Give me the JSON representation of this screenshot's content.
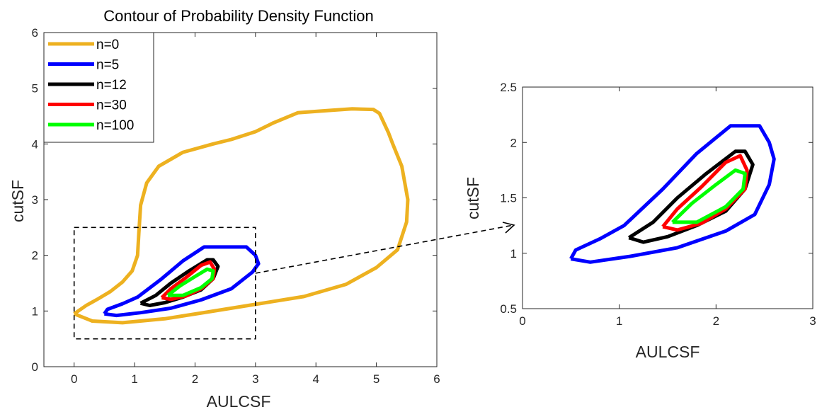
{
  "chart_data": [
    {
      "type": "line",
      "subtype": "contour",
      "title": "Contour of Probability Density Function",
      "xlabel": "AULCSF",
      "ylabel": "cutSF",
      "xlim": [
        -0.5,
        6
      ],
      "ylim": [
        0,
        6
      ],
      "xticks": [
        "0",
        "1",
        "2",
        "3",
        "4",
        "5",
        "6"
      ],
      "yticks": [
        "0",
        "1",
        "2",
        "3",
        "4",
        "5",
        "6"
      ],
      "legend": {
        "placement": "top-left"
      },
      "zoom_box": {
        "x": [
          0,
          3
        ],
        "y": [
          0.5,
          2.5
        ]
      },
      "series": [
        {
          "name": "n=0",
          "color": "#EDB120",
          "points": [
            [
              0,
              0.95
            ],
            [
              0.3,
              0.82
            ],
            [
              0.8,
              0.79
            ],
            [
              1.5,
              0.86
            ],
            [
              2.2,
              0.98
            ],
            [
              3,
              1.12
            ],
            [
              3.8,
              1.26
            ],
            [
              4.5,
              1.48
            ],
            [
              5,
              1.78
            ],
            [
              5.35,
              2.1
            ],
            [
              5.5,
              2.6
            ],
            [
              5.52,
              3.0
            ],
            [
              5.42,
              3.6
            ],
            [
              5.27,
              4.0
            ],
            [
              5.2,
              4.2
            ],
            [
              5.05,
              4.55
            ],
            [
              4.95,
              4.62
            ],
            [
              4.6,
              4.63
            ],
            [
              4.2,
              4.6
            ],
            [
              3.7,
              4.56
            ],
            [
              3.3,
              4.38
            ],
            [
              3,
              4.22
            ],
            [
              2.6,
              4.08
            ],
            [
              2.3,
              4.0
            ],
            [
              1.8,
              3.85
            ],
            [
              1.4,
              3.6
            ],
            [
              1.2,
              3.3
            ],
            [
              1.1,
              2.9
            ],
            [
              1.07,
              2.4
            ],
            [
              1.05,
              2.0
            ],
            [
              0.96,
              1.72
            ],
            [
              0.8,
              1.52
            ],
            [
              0.6,
              1.35
            ],
            [
              0.4,
              1.22
            ],
            [
              0.2,
              1.1
            ],
            [
              0,
              0.95
            ]
          ]
        },
        {
          "name": "n=5",
          "color": "#0000FF",
          "points": [
            [
              0.5,
              0.95
            ],
            [
              0.7,
              0.92
            ],
            [
              1.1,
              0.97
            ],
            [
              1.6,
              1.05
            ],
            [
              2.1,
              1.2
            ],
            [
              2.6,
              1.4
            ],
            [
              2.95,
              1.7
            ],
            [
              3.05,
              1.85
            ],
            [
              3.0,
              2.0
            ],
            [
              2.85,
              2.15
            ],
            [
              2.45,
              2.15
            ],
            [
              2.15,
              2.15
            ],
            [
              1.8,
              1.9
            ],
            [
              1.45,
              1.58
            ],
            [
              1.05,
              1.25
            ],
            [
              0.8,
              1.13
            ],
            [
              0.55,
              1.03
            ],
            [
              0.5,
              0.95
            ]
          ]
        },
        {
          "name": "n=12",
          "color": "#000000",
          "points": [
            [
              1.1,
              1.14
            ],
            [
              1.25,
              1.1
            ],
            [
              1.5,
              1.15
            ],
            [
              1.8,
              1.25
            ],
            [
              2.1,
              1.38
            ],
            [
              2.3,
              1.58
            ],
            [
              2.38,
              1.8
            ],
            [
              2.3,
              1.92
            ],
            [
              2.2,
              1.92
            ],
            [
              1.9,
              1.72
            ],
            [
              1.6,
              1.5
            ],
            [
              1.35,
              1.28
            ],
            [
              1.1,
              1.14
            ]
          ]
        },
        {
          "name": "n=30",
          "color": "#FF0000",
          "points": [
            [
              1.45,
              1.24
            ],
            [
              1.6,
              1.21
            ],
            [
              1.85,
              1.27
            ],
            [
              2.1,
              1.4
            ],
            [
              2.3,
              1.58
            ],
            [
              2.32,
              1.75
            ],
            [
              2.25,
              1.88
            ],
            [
              2.1,
              1.82
            ],
            [
              1.85,
              1.6
            ],
            [
              1.6,
              1.4
            ],
            [
              1.45,
              1.24
            ]
          ]
        },
        {
          "name": "n=100",
          "color": "#00FF00",
          "points": [
            [
              1.55,
              1.28
            ],
            [
              1.8,
              1.28
            ],
            [
              2.1,
              1.42
            ],
            [
              2.28,
              1.58
            ],
            [
              2.3,
              1.72
            ],
            [
              2.2,
              1.75
            ],
            [
              2.0,
              1.62
            ],
            [
              1.75,
              1.45
            ],
            [
              1.55,
              1.28
            ]
          ]
        }
      ]
    },
    {
      "type": "line",
      "subtype": "contour",
      "title": "",
      "xlabel": "AULCSF",
      "ylabel": "cutSF",
      "xlim": [
        0,
        3
      ],
      "ylim": [
        0.5,
        2.5
      ],
      "xticks": [
        "0",
        "1",
        "2",
        "3"
      ],
      "yticks": [
        "0.5",
        "1",
        "1.5",
        "2",
        "2.5"
      ],
      "series": [
        {
          "color": "#0000FF",
          "points": [
            [
              0.5,
              0.95
            ],
            [
              0.7,
              0.92
            ],
            [
              1.1,
              0.97
            ],
            [
              1.6,
              1.05
            ],
            [
              2.1,
              1.2
            ],
            [
              2.4,
              1.35
            ],
            [
              2.55,
              1.62
            ],
            [
              2.6,
              1.85
            ],
            [
              2.55,
              2.0
            ],
            [
              2.45,
              2.15
            ],
            [
              2.15,
              2.15
            ],
            [
              1.8,
              1.9
            ],
            [
              1.45,
              1.58
            ],
            [
              1.05,
              1.25
            ],
            [
              0.8,
              1.13
            ],
            [
              0.55,
              1.03
            ],
            [
              0.5,
              0.95
            ]
          ]
        },
        {
          "color": "#000000",
          "points": [
            [
              1.1,
              1.14
            ],
            [
              1.25,
              1.1
            ],
            [
              1.5,
              1.15
            ],
            [
              1.8,
              1.25
            ],
            [
              2.1,
              1.38
            ],
            [
              2.3,
              1.58
            ],
            [
              2.38,
              1.8
            ],
            [
              2.3,
              1.92
            ],
            [
              2.2,
              1.92
            ],
            [
              1.9,
              1.72
            ],
            [
              1.6,
              1.5
            ],
            [
              1.35,
              1.28
            ],
            [
              1.1,
              1.14
            ]
          ]
        },
        {
          "color": "#FF0000",
          "points": [
            [
              1.45,
              1.24
            ],
            [
              1.6,
              1.21
            ],
            [
              1.85,
              1.27
            ],
            [
              2.1,
              1.4
            ],
            [
              2.3,
              1.58
            ],
            [
              2.32,
              1.75
            ],
            [
              2.25,
              1.88
            ],
            [
              2.1,
              1.82
            ],
            [
              1.85,
              1.6
            ],
            [
              1.6,
              1.4
            ],
            [
              1.45,
              1.24
            ]
          ]
        },
        {
          "color": "#00FF00",
          "points": [
            [
              1.55,
              1.28
            ],
            [
              1.8,
              1.28
            ],
            [
              2.1,
              1.42
            ],
            [
              2.28,
              1.58
            ],
            [
              2.3,
              1.72
            ],
            [
              2.2,
              1.75
            ],
            [
              2.0,
              1.62
            ],
            [
              1.75,
              1.45
            ],
            [
              1.55,
              1.28
            ]
          ]
        }
      ]
    }
  ]
}
